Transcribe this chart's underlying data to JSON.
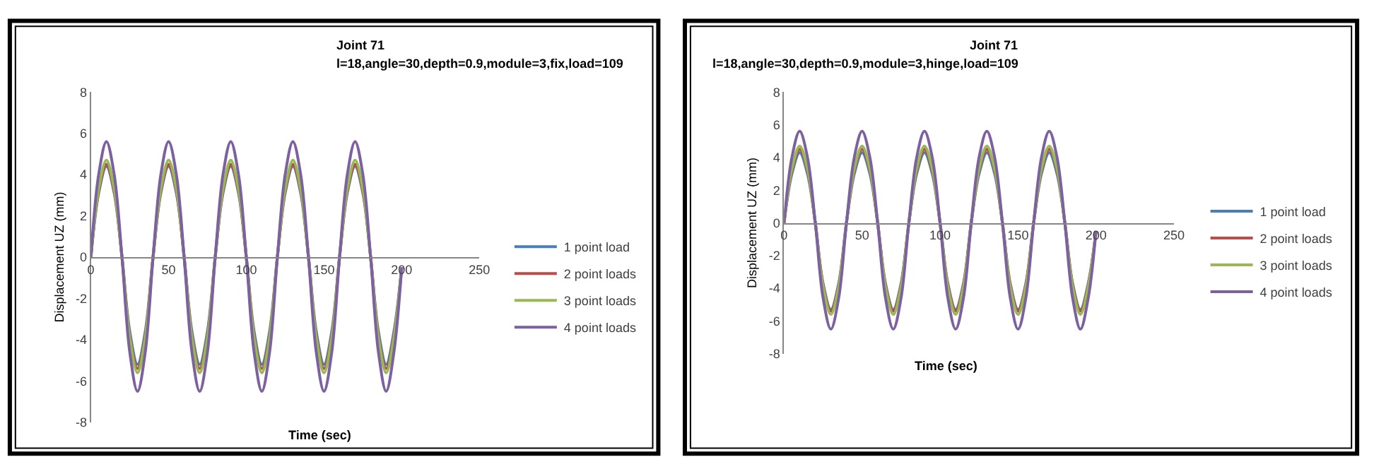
{
  "chart_data": [
    {
      "type": "line",
      "title": "Joint 71",
      "subtitle": "l=18,angle=30,depth=0.9,module=3,fix,load=109",
      "xlabel": "Time (sec)",
      "ylabel": "Displacement UZ (mm)",
      "xlim": [
        0,
        250
      ],
      "xticks": [
        0,
        50,
        100,
        150,
        200,
        250
      ],
      "ylim": [
        -8,
        8
      ],
      "yticks": [
        -8,
        -6,
        -4,
        -2,
        0,
        2,
        4,
        6,
        8
      ],
      "legend": "right",
      "marker": "none",
      "line_style": "solid",
      "x": [
        0,
        5,
        10,
        15,
        20,
        25,
        30,
        35,
        40,
        45,
        50,
        55,
        60,
        65,
        70,
        75,
        80,
        85,
        90,
        95,
        100,
        105,
        110,
        115,
        120,
        125,
        130,
        135,
        140,
        145,
        150,
        155,
        160,
        165,
        170,
        175,
        180,
        185,
        190,
        195,
        200
      ],
      "series": [
        {
          "name": "1 point load",
          "color": "#4a7ebb",
          "values": [
            0,
            3.1,
            4.4,
            3.1,
            0,
            -3.6,
            -5.2,
            -3.6,
            0,
            3.1,
            4.4,
            3.1,
            0,
            -3.6,
            -5.2,
            -3.6,
            0,
            3.1,
            4.4,
            3.1,
            0,
            -3.6,
            -5.2,
            -3.6,
            0,
            3.1,
            4.4,
            3.1,
            0,
            -3.6,
            -5.2,
            -3.6,
            0,
            3.1,
            4.4,
            3.1,
            0,
            -3.6,
            -5.2,
            -3.6,
            -0.5
          ]
        },
        {
          "name": "2 point loads",
          "color": "#be4b48",
          "values": [
            0,
            3.2,
            4.5,
            3.2,
            0,
            -3.8,
            -5.4,
            -3.8,
            0,
            3.2,
            4.5,
            3.2,
            0,
            -3.8,
            -5.4,
            -3.8,
            0,
            3.2,
            4.5,
            3.2,
            0,
            -3.8,
            -5.4,
            -3.8,
            0,
            3.2,
            4.5,
            3.2,
            0,
            -3.8,
            -5.4,
            -3.8,
            0,
            3.2,
            4.5,
            3.2,
            0,
            -3.8,
            -5.4,
            -3.8,
            -0.5
          ]
        },
        {
          "name": "3 point loads",
          "color": "#98b954",
          "values": [
            0,
            3.3,
            4.7,
            3.3,
            0,
            -3.9,
            -5.6,
            -3.9,
            0,
            3.3,
            4.7,
            3.3,
            0,
            -3.9,
            -5.6,
            -3.9,
            0,
            3.3,
            4.7,
            3.3,
            0,
            -3.9,
            -5.6,
            -3.9,
            0,
            3.3,
            4.7,
            3.3,
            0,
            -3.9,
            -5.6,
            -3.9,
            0,
            3.3,
            4.7,
            3.3,
            0,
            -3.9,
            -5.6,
            -3.9,
            -0.5
          ]
        },
        {
          "name": "4 point loads",
          "color": "#7d60a0",
          "values": [
            0,
            4.0,
            5.6,
            4.0,
            0,
            -4.6,
            -6.5,
            -4.6,
            0,
            4.0,
            5.6,
            4.0,
            0,
            -4.6,
            -6.5,
            -4.6,
            0,
            4.0,
            5.6,
            4.0,
            0,
            -4.6,
            -6.5,
            -4.6,
            0,
            4.0,
            5.6,
            4.0,
            0,
            -4.6,
            -6.5,
            -4.6,
            0,
            4.0,
            5.6,
            4.0,
            0,
            -4.6,
            -6.5,
            -4.6,
            -0.5
          ]
        }
      ]
    },
    {
      "type": "line",
      "title": "Joint 71",
      "subtitle": "l=18,angle=30,depth=0.9,module=3,hinge,load=109",
      "xlabel": "Time (sec)",
      "ylabel": "Displacement UZ (mm)",
      "xlim": [
        0,
        250
      ],
      "xticks": [
        0,
        50,
        100,
        150,
        200,
        250
      ],
      "ylim": [
        -8,
        8
      ],
      "yticks": [
        -8,
        -6,
        -4,
        -2,
        0,
        2,
        4,
        6,
        8
      ],
      "legend": "right",
      "marker": "none",
      "line_style": "solid",
      "x": [
        0,
        5,
        10,
        15,
        20,
        25,
        30,
        35,
        40,
        45,
        50,
        55,
        60,
        65,
        70,
        75,
        80,
        85,
        90,
        95,
        100,
        105,
        110,
        115,
        120,
        125,
        130,
        135,
        140,
        145,
        150,
        155,
        160,
        165,
        170,
        175,
        180,
        185,
        190,
        195,
        200
      ],
      "series": [
        {
          "name": "1 point load",
          "color": "#4a7ebb",
          "values": [
            0,
            3.0,
            4.3,
            3.0,
            0,
            -3.7,
            -5.3,
            -3.7,
            0,
            3.0,
            4.3,
            3.0,
            0,
            -3.7,
            -5.3,
            -3.7,
            0,
            3.0,
            4.3,
            3.0,
            0,
            -3.7,
            -5.3,
            -3.7,
            0,
            3.0,
            4.3,
            3.0,
            0,
            -3.7,
            -5.3,
            -3.7,
            0,
            3.0,
            4.3,
            3.0,
            0,
            -3.7,
            -5.3,
            -3.7,
            -0.5
          ]
        },
        {
          "name": "2 point loads",
          "color": "#be4b48",
          "values": [
            0,
            3.2,
            4.5,
            3.2,
            0,
            -3.8,
            -5.4,
            -3.8,
            0,
            3.2,
            4.5,
            3.2,
            0,
            -3.8,
            -5.4,
            -3.8,
            0,
            3.2,
            4.5,
            3.2,
            0,
            -3.8,
            -5.4,
            -3.8,
            0,
            3.2,
            4.5,
            3.2,
            0,
            -3.8,
            -5.4,
            -3.8,
            0,
            3.2,
            4.5,
            3.2,
            0,
            -3.8,
            -5.4,
            -3.8,
            -0.5
          ]
        },
        {
          "name": "3 point loads",
          "color": "#98b954",
          "values": [
            0,
            3.3,
            4.7,
            3.3,
            0,
            -3.9,
            -5.6,
            -3.9,
            0,
            3.3,
            4.7,
            3.3,
            0,
            -3.9,
            -5.6,
            -3.9,
            0,
            3.3,
            4.7,
            3.3,
            0,
            -3.9,
            -5.6,
            -3.9,
            0,
            3.3,
            4.7,
            3.3,
            0,
            -3.9,
            -5.6,
            -3.9,
            0,
            3.3,
            4.7,
            3.3,
            0,
            -3.9,
            -5.6,
            -3.9,
            -0.5
          ]
        },
        {
          "name": "4 point loads",
          "color": "#7d60a0",
          "values": [
            0,
            4.0,
            5.6,
            4.0,
            0,
            -4.6,
            -6.5,
            -4.6,
            0,
            4.0,
            5.6,
            4.0,
            0,
            -4.6,
            -6.5,
            -4.6,
            0,
            4.0,
            5.6,
            4.0,
            0,
            -4.6,
            -6.5,
            -4.6,
            0,
            4.0,
            5.6,
            4.0,
            0,
            -4.6,
            -6.5,
            -4.6,
            0,
            4.0,
            5.6,
            4.0,
            0,
            -4.6,
            -6.5,
            -4.6,
            -0.5
          ]
        }
      ]
    }
  ]
}
